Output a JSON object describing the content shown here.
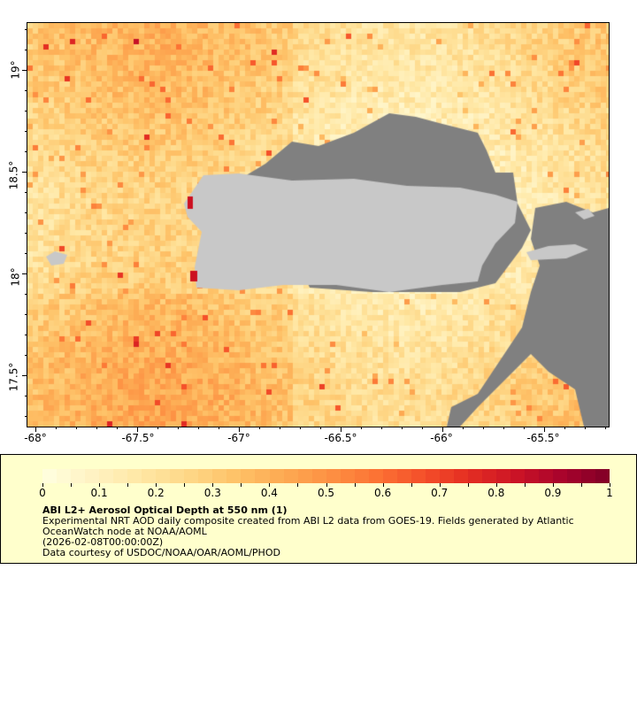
{
  "map": {
    "lon_range": [
      -68.08,
      -65.16
    ],
    "lat_range": [
      17.22,
      19.24
    ],
    "x_ticks": [
      "-68°",
      "-67.5°",
      "-67°",
      "-66.5°",
      "-66°",
      "-65.5°"
    ],
    "y_ticks": [
      "19°",
      "18.5°",
      "18°",
      "17.5°"
    ],
    "land_color": "#c8c8c8",
    "missing_color": "#808080"
  },
  "legend": {
    "colorbar_ticks": [
      "0",
      "0.1",
      "0.2",
      "0.3",
      "0.4",
      "0.5",
      "0.6",
      "0.7",
      "0.8",
      "0.9",
      "1"
    ],
    "colorbar_range": [
      0,
      1
    ],
    "palette": [
      "#ffffe0",
      "#fff3c4",
      "#ffe8a6",
      "#fed98a",
      "#fec46a",
      "#fdac54",
      "#fd9244",
      "#fc7535",
      "#f5512a",
      "#e42e22",
      "#cc1426",
      "#a8032c",
      "#800026"
    ],
    "title": "ABI L2+ Aerosol Optical Depth at 550 nm (1)",
    "line1": "Experimental NRT AOD daily composite created from ABI L2 data from GOES-19. Fields generated by Atlantic",
    "line2": "OceanWatch node at NOAA/AOML",
    "line3": "(2026-02-08T00:00:00Z)",
    "line4": "Data courtesy of USDOC/NOAA/OAR/AOML/PHOD"
  }
}
